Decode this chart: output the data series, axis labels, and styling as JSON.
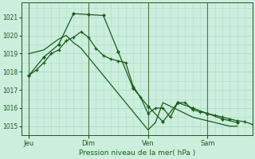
{
  "xlabel": "Pression niveau de la mer( hPa )",
  "bg_color": "#cceedd",
  "grid_color": "#aaddcc",
  "line_color": "#1a5c1a",
  "ylim": [
    1014.5,
    1021.8
  ],
  "yticks": [
    1015,
    1016,
    1017,
    1018,
    1019,
    1020,
    1021
  ],
  "day_labels": [
    "Jeu",
    "Dim",
    "Ven",
    "Sam"
  ],
  "day_positions": [
    0,
    48,
    96,
    144
  ],
  "xlim": [
    -6,
    180
  ],
  "series1_x": [
    0,
    6,
    12,
    18,
    24,
    30,
    36,
    42,
    48,
    54,
    60,
    66,
    72,
    78,
    84,
    90,
    96,
    102,
    108,
    114,
    120,
    126,
    132,
    138,
    144,
    150,
    156,
    162,
    168,
    174,
    180
  ],
  "series1_y": [
    1017.8,
    1018.1,
    1018.5,
    1019.0,
    1019.2,
    1019.7,
    1019.9,
    1020.2,
    1019.9,
    1019.3,
    1018.9,
    1018.7,
    1018.6,
    1018.5,
    1017.2,
    1016.6,
    1015.7,
    1016.0,
    1016.0,
    1015.5,
    1016.3,
    1016.3,
    1015.9,
    1015.8,
    1015.7,
    1015.6,
    1015.5,
    1015.4,
    1015.3,
    1015.25,
    1015.1
  ],
  "series2_x": [
    0,
    6,
    12,
    18,
    24,
    30,
    36,
    42,
    48,
    54,
    60,
    66,
    72,
    78,
    84,
    90,
    96,
    102,
    108,
    114,
    120,
    126,
    132,
    138,
    144,
    150,
    156,
    162,
    168
  ],
  "series2_y": [
    1019.0,
    1019.1,
    1019.2,
    1019.5,
    1019.8,
    1020.0,
    1019.6,
    1019.3,
    1018.8,
    1018.3,
    1017.8,
    1017.3,
    1016.8,
    1016.3,
    1015.8,
    1015.3,
    1014.8,
    1015.2,
    1016.3,
    1016.1,
    1015.9,
    1015.7,
    1015.5,
    1015.4,
    1015.3,
    1015.2,
    1015.1,
    1015.0,
    1015.0
  ],
  "series3_x": [
    0,
    12,
    24,
    36,
    48,
    60,
    72,
    84,
    96,
    108,
    120,
    132,
    144,
    156,
    168
  ],
  "series3_y": [
    1017.8,
    1018.8,
    1019.5,
    1021.2,
    1021.15,
    1021.1,
    1019.1,
    1017.1,
    1016.1,
    1015.25,
    1016.3,
    1016.0,
    1015.7,
    1015.4,
    1015.2
  ],
  "trend_x": [
    0,
    168
  ],
  "trend_y": [
    1019.2,
    1015.1
  ]
}
